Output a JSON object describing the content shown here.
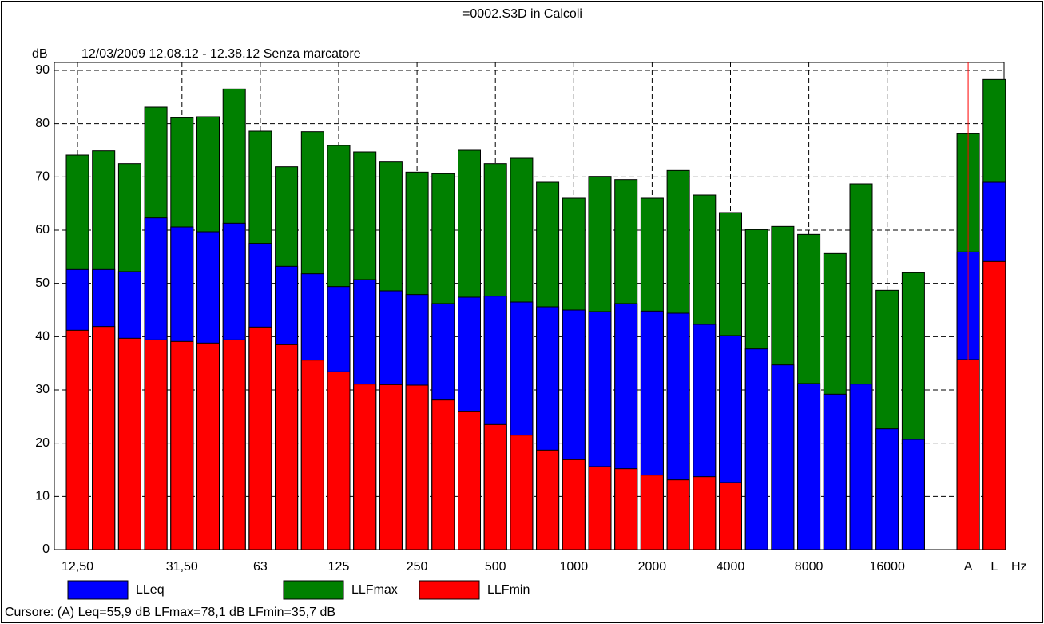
{
  "chart_data": {
    "type": "bar",
    "title": "=0002.S3D in Calcoli",
    "subtitle": "12/03/2009 12.08.12 - 12.38.12  Senza marcatore",
    "y_label": "dB",
    "x_label": "Hz",
    "footer": "Cursore: (A)  Leq=55,9 dB  LFmax=78,1 dB  LFmin=35,7 dB",
    "categories": [
      "12,50",
      null,
      null,
      null,
      "31,50",
      null,
      null,
      "63",
      null,
      null,
      "125",
      null,
      null,
      "250",
      null,
      null,
      "500",
      null,
      null,
      "1000",
      null,
      null,
      "2000",
      null,
      null,
      "4000",
      null,
      null,
      "8000",
      null,
      null,
      "16000",
      null,
      "A",
      "L"
    ],
    "series": [
      {
        "name": "LLFmax",
        "color": "#008000",
        "values": [
          74.1,
          74.9,
          72.5,
          83.1,
          81.1,
          81.3,
          86.5,
          78.6,
          71.9,
          78.5,
          75.9,
          74.7,
          72.8,
          70.9,
          70.6,
          75.0,
          72.5,
          73.5,
          69.0,
          66.0,
          70.1,
          69.5,
          66.0,
          71.2,
          66.6,
          63.3,
          60.1,
          60.7,
          59.2,
          55.6,
          68.7,
          48.7,
          52.0,
          78.1,
          88.3
        ]
      },
      {
        "name": "LLeq",
        "color": "#0000ff",
        "values": [
          52.6,
          52.6,
          52.2,
          62.3,
          60.6,
          59.7,
          61.3,
          57.5,
          53.2,
          51.8,
          49.4,
          50.7,
          48.6,
          47.9,
          46.2,
          47.4,
          47.6,
          46.5,
          45.6,
          45.0,
          44.7,
          46.2,
          44.8,
          44.4,
          42.3,
          40.2,
          37.7,
          34.7,
          31.2,
          29.2,
          31.1,
          22.7,
          20.7,
          55.9,
          69.0
        ]
      },
      {
        "name": "LLFmin",
        "color": "#ff0000",
        "values": [
          41.2,
          41.9,
          39.7,
          39.4,
          39.1,
          38.8,
          39.4,
          41.8,
          38.5,
          35.6,
          33.4,
          31.1,
          31.0,
          30.9,
          28.1,
          25.9,
          23.5,
          21.5,
          18.7,
          16.9,
          15.6,
          15.2,
          14.0,
          13.1,
          13.7,
          12.6,
          null,
          null,
          null,
          null,
          null,
          null,
          null,
          35.7,
          54.1
        ]
      }
    ],
    "legend_order": [
      "LLeq",
      "LLFmax",
      "LLFmin"
    ],
    "ylim": [
      0,
      90
    ],
    "yticks": [
      0,
      10,
      20,
      30,
      40,
      50,
      60,
      70,
      80,
      90
    ],
    "grid": true
  }
}
